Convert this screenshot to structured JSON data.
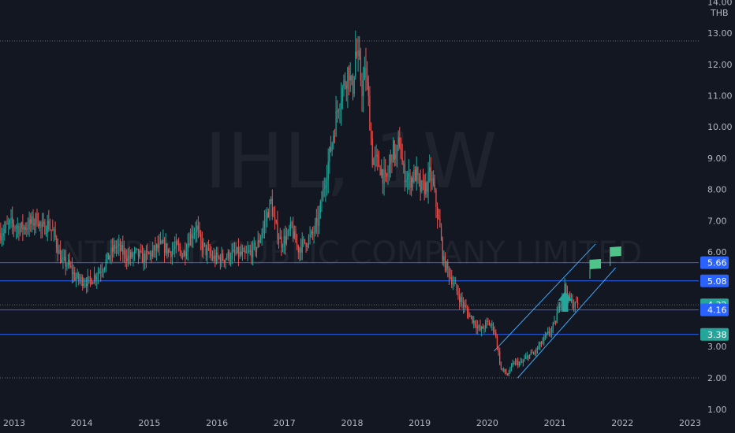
{
  "watermark": {
    "symbol": "IHL, 1W",
    "company": "INTERLINK PUBLIC COMPANY LIMITED"
  },
  "currency": "THB",
  "colors": {
    "background": "#131722",
    "up": "#26a69a",
    "down": "#ef5350",
    "hline": "#2962ff",
    "channel": "#42a5f5",
    "axis_text": "#b2b5be",
    "dotted": "#787b86",
    "flag": "#4fc38a",
    "arrow": "#26a69a"
  },
  "chart_data": {
    "type": "candlestick",
    "title": "",
    "x_ticks": [
      "2013",
      "2014",
      "2015",
      "2016",
      "2017",
      "2018",
      "2019",
      "2020",
      "2021",
      "2022",
      "2023"
    ],
    "y_ticks": [
      "14.00",
      "13.00",
      "12.00",
      "11.00",
      "10.00",
      "9.00",
      "8.00",
      "7.00",
      "6.00",
      "3.00",
      "2.00",
      "1.00"
    ],
    "ylim": [
      1.0,
      14.2
    ],
    "xlim": [
      2012.8,
      2023.1
    ],
    "price_labels": [
      {
        "value": 5.66,
        "label": "5.66",
        "style": "blue"
      },
      {
        "value": 5.08,
        "label": "5.08",
        "style": "blue"
      },
      {
        "value": 4.32,
        "label": "4.32",
        "style": "teal"
      },
      {
        "value": 4.16,
        "label": "4.16",
        "style": "blue"
      },
      {
        "value": 3.38,
        "label": "3.38",
        "style": "teal"
      }
    ],
    "horizontal_lines": [
      5.66,
      5.08,
      4.16,
      3.38
    ],
    "dotted_lines": [
      12.75,
      4.32,
      2.0
    ],
    "channel": {
      "lower": [
        [
          2020.45,
          2.0
        ],
        [
          2021.9,
          5.5
        ]
      ],
      "upper": [
        [
          2020.1,
          2.85
        ],
        [
          2021.6,
          6.25
        ]
      ]
    },
    "flags": [
      [
        2021.6,
        5.6
      ],
      [
        2021.9,
        6.0
      ]
    ],
    "arrow": [
      2021.15,
      4.2
    ],
    "path": [
      [
        2012.8,
        6.6
      ],
      [
        2012.95,
        6.9
      ],
      [
        2013.1,
        6.75
      ],
      [
        2013.25,
        6.9
      ],
      [
        2013.35,
        7.1
      ],
      [
        2013.4,
        6.7
      ],
      [
        2013.5,
        6.9
      ],
      [
        2013.6,
        6.5
      ],
      [
        2013.7,
        5.7
      ],
      [
        2013.8,
        5.6
      ],
      [
        2013.9,
        5.2
      ],
      [
        2014.0,
        5.1
      ],
      [
        2014.1,
        5.05
      ],
      [
        2014.2,
        5.25
      ],
      [
        2014.3,
        5.5
      ],
      [
        2014.4,
        5.85
      ],
      [
        2014.5,
        6.2
      ],
      [
        2014.6,
        6.0
      ],
      [
        2014.7,
        5.8
      ],
      [
        2014.8,
        5.95
      ],
      [
        2014.9,
        5.8
      ],
      [
        2015.0,
        5.9
      ],
      [
        2015.1,
        6.1
      ],
      [
        2015.2,
        6.2
      ],
      [
        2015.3,
        6.0
      ],
      [
        2015.4,
        6.15
      ],
      [
        2015.5,
        5.9
      ],
      [
        2015.6,
        6.5
      ],
      [
        2015.7,
        6.8
      ],
      [
        2015.75,
        6.3
      ],
      [
        2015.85,
        6.0
      ],
      [
        2015.95,
        5.8
      ],
      [
        2016.1,
        5.8
      ],
      [
        2016.2,
        5.9
      ],
      [
        2016.3,
        5.95
      ],
      [
        2016.4,
        5.85
      ],
      [
        2016.5,
        6.0
      ],
      [
        2016.6,
        6.2
      ],
      [
        2016.7,
        6.9
      ],
      [
        2016.8,
        7.6
      ],
      [
        2016.85,
        6.9
      ],
      [
        2016.95,
        6.3
      ],
      [
        2017.05,
        6.5
      ],
      [
        2017.1,
        6.8
      ],
      [
        2017.15,
        6.4
      ],
      [
        2017.2,
        6.1
      ],
      [
        2017.3,
        6.3
      ],
      [
        2017.4,
        6.5
      ],
      [
        2017.5,
        7.0
      ],
      [
        2017.6,
        8.3
      ],
      [
        2017.7,
        9.5
      ],
      [
        2017.8,
        10.8
      ],
      [
        2017.9,
        11.5
      ],
      [
        2017.95,
        11.9
      ],
      [
        2018.0,
        11.0
      ],
      [
        2018.05,
        12.4
      ],
      [
        2018.1,
        12.0
      ],
      [
        2018.15,
        11.2
      ],
      [
        2018.2,
        11.8
      ],
      [
        2018.25,
        10.6
      ],
      [
        2018.3,
        9.0
      ],
      [
        2018.4,
        8.8
      ],
      [
        2018.5,
        8.2
      ],
      [
        2018.6,
        9.3
      ],
      [
        2018.65,
        9.0
      ],
      [
        2018.7,
        9.6
      ],
      [
        2018.75,
        8.6
      ],
      [
        2018.85,
        8.3
      ],
      [
        2018.95,
        8.5
      ],
      [
        2019.0,
        8.0
      ],
      [
        2019.1,
        8.1
      ],
      [
        2019.15,
        8.5
      ],
      [
        2019.2,
        8.1
      ],
      [
        2019.3,
        6.7
      ],
      [
        2019.35,
        5.7
      ],
      [
        2019.4,
        5.5
      ],
      [
        2019.5,
        5.0
      ],
      [
        2019.6,
        4.5
      ],
      [
        2019.7,
        4.1
      ],
      [
        2019.8,
        3.8
      ],
      [
        2019.9,
        3.5
      ],
      [
        2020.0,
        3.75
      ],
      [
        2020.1,
        3.6
      ],
      [
        2020.15,
        3.0
      ],
      [
        2020.2,
        2.3
      ],
      [
        2020.3,
        2.1
      ],
      [
        2020.4,
        2.5
      ],
      [
        2020.5,
        2.45
      ],
      [
        2020.6,
        2.7
      ],
      [
        2020.7,
        2.8
      ],
      [
        2020.8,
        3.1
      ],
      [
        2020.9,
        3.4
      ],
      [
        2021.0,
        3.7
      ],
      [
        2021.05,
        4.2
      ],
      [
        2021.1,
        4.6
      ],
      [
        2021.15,
        4.9
      ],
      [
        2021.2,
        4.5
      ],
      [
        2021.3,
        4.3
      ],
      [
        2021.35,
        4.4
      ]
    ]
  }
}
